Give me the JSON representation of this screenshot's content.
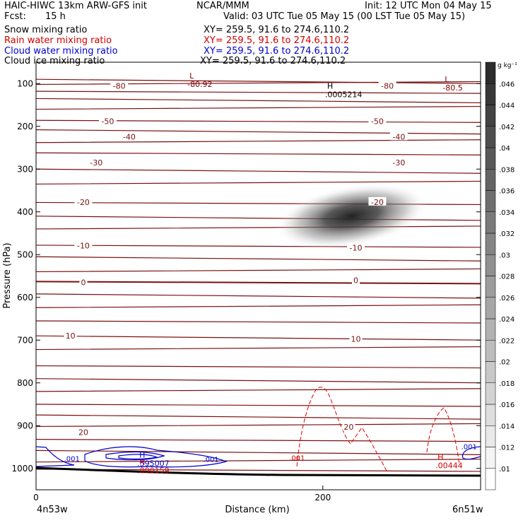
{
  "header": {
    "model": "HAIC-HIWC 13km ARW-GFS init",
    "org": "NCAR/MMM",
    "init": "Init: 12 UTC Mon 04 May 15",
    "fcst_label": "Fcst:",
    "fcst_value": "15 h",
    "valid": "Valid: 03 UTC Tue 05 May 15 (00 LST Tue 05 May 15)",
    "fields": [
      {
        "name": "Snow mixing ratio",
        "xy": "XY= 259.5, 91.6 to 274.6,110.2",
        "color": "#000000"
      },
      {
        "name": "Rain water mixing ratio",
        "xy": "XY= 259.5, 91.6 to 274.6,110.2",
        "color": "#d40000"
      },
      {
        "name": "Cloud water mixing ratio",
        "xy": "XY= 259.5, 91.6 to 274.6,110.2",
        "color": "#0000cc"
      },
      {
        "name": "Cloud ice mixing ratio",
        "xy": "XY= 259.5, 91.6 to 274.6,110.2",
        "color": "#000000"
      }
    ]
  },
  "chart_data": {
    "type": "heatmap",
    "xlabel": "Distance (km)",
    "ylabel": "Pressure (hPa)",
    "xlim": [
      0,
      310
    ],
    "ylim": [
      1050,
      50
    ],
    "x_ticks": [
      0,
      200
    ],
    "y_ticks": [
      100,
      200,
      300,
      400,
      500,
      600,
      700,
      800,
      900,
      1000
    ],
    "x_endpoint_labels": {
      "left": "4n53w",
      "right": "6n51w"
    },
    "colorbar": {
      "unit": "g kg⁻¹",
      "ticks": [
        ".01",
        ".012",
        ".014",
        ".016",
        ".018",
        ".02",
        ".022",
        ".024",
        ".026",
        ".028",
        ".03",
        ".032",
        ".034",
        ".036",
        ".038",
        ".04",
        ".042",
        ".044",
        ".046"
      ]
    },
    "temperature_labels": [
      {
        "text": "-80",
        "x": 58,
        "p": 105
      },
      {
        "text": "-80",
        "x": 245,
        "p": 105
      },
      {
        "text": "-50",
        "x": 50,
        "p": 188
      },
      {
        "text": "-50",
        "x": 238,
        "p": 188
      },
      {
        "text": "-40",
        "x": 65,
        "p": 224
      },
      {
        "text": "-40",
        "x": 253,
        "p": 224
      },
      {
        "text": "-30",
        "x": 42,
        "p": 285
      },
      {
        "text": "-30",
        "x": 253,
        "p": 285
      },
      {
        "text": "-20",
        "x": 33,
        "p": 377
      },
      {
        "text": "-20",
        "x": 238,
        "p": 377
      },
      {
        "text": "-10",
        "x": 33,
        "p": 479
      },
      {
        "text": "-10",
        "x": 223,
        "p": 484
      },
      {
        "text": "0",
        "x": 33,
        "p": 565
      },
      {
        "text": "0",
        "x": 223,
        "p": 560
      },
      {
        "text": "10",
        "x": 24,
        "p": 690
      },
      {
        "text": "10",
        "x": 223,
        "p": 697
      },
      {
        "text": "20",
        "x": 33,
        "p": 915
      },
      {
        "text": "20",
        "x": 218,
        "p": 903
      }
    ],
    "extrema": [
      {
        "mark": "L",
        "value": "-80.92",
        "x": 107,
        "p": 88,
        "color": "#800000"
      },
      {
        "mark": "L",
        "value": "-80.5",
        "x": 285,
        "p": 96,
        "color": "#800000"
      },
      {
        "mark": "H",
        "value": ".0005214",
        "x": 203,
        "p": 112,
        "color": "#000000"
      },
      {
        "mark": "H",
        "value": ".595007",
        "x": 72,
        "p": 975,
        "color": "#0000cc"
      },
      {
        "mark": "H",
        "value": ".000159",
        "x": 72,
        "p": 991,
        "color": "#d40000"
      },
      {
        "mark": "H",
        "value": ".00444",
        "x": 280,
        "p": 980,
        "color": "#d40000"
      }
    ],
    "contour_labels": [
      {
        "text": ".001",
        "x": 25,
        "p": 983,
        "color": "#0000cc"
      },
      {
        "text": ".001",
        "x": 122,
        "p": 985,
        "color": "#0000cc"
      },
      {
        "text": ".001",
        "x": 302,
        "p": 955,
        "color": "#0000cc"
      },
      {
        "text": ".001",
        "x": 182,
        "p": 981,
        "color": "#d40000"
      }
    ],
    "snow_max": {
      "x": 220,
      "p": 410,
      "value": 0.046
    }
  }
}
